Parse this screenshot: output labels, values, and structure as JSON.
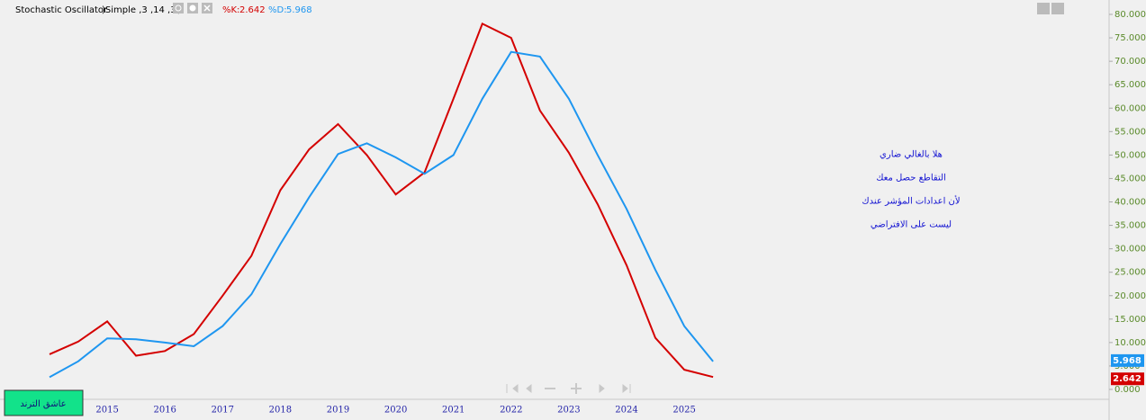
{
  "chart_data": {
    "type": "line",
    "title": "Stochastic Oscillator",
    "subtitle": ")Simple ,3 ,14 ,3(",
    "categories": [
      null,
      null,
      "2015",
      null,
      "2016",
      null,
      "2017",
      null,
      "2018",
      null,
      "2019",
      null,
      "2020",
      null,
      "2021",
      null,
      "2022",
      null,
      "2023",
      null,
      "2024",
      null,
      "2025",
      null
    ],
    "series": [
      {
        "name": "%K:",
        "color": "#d40000",
        "values": [
          7.5,
          10.2,
          14.5,
          7.2,
          8.2,
          11.8,
          20,
          28.5,
          42.5,
          51.2,
          56.6,
          50,
          41.6,
          46.3,
          62,
          78,
          75,
          59.5,
          50.5,
          39.5,
          26.5,
          11,
          4.2,
          2.642
        ]
      },
      {
        "name": "%D:",
        "color": "#1e96f0",
        "values": [
          2.6,
          6,
          10.9,
          10.7,
          10,
          9.2,
          13.5,
          20.3,
          31,
          41,
          50.2,
          52.5,
          49.5,
          46,
          50,
          62,
          72,
          71,
          62,
          50,
          38.5,
          25.5,
          13.5,
          5.968
        ]
      }
    ],
    "ylim": [
      0,
      80
    ],
    "yticks": [
      {
        "value": 0,
        "label": "0.000"
      },
      {
        "value": 5,
        "label": "5.000"
      },
      {
        "value": 10,
        "label": "10.000"
      },
      {
        "value": 15,
        "label": "15.000"
      },
      {
        "value": 20,
        "label": "20.000"
      },
      {
        "value": 25,
        "label": "25.000"
      },
      {
        "value": 30,
        "label": "30.000"
      },
      {
        "value": 35,
        "label": "35.000"
      },
      {
        "value": 40,
        "label": "40.000"
      },
      {
        "value": 45,
        "label": "45.000"
      },
      {
        "value": 50,
        "label": "50.000"
      },
      {
        "value": 55,
        "label": "55.000"
      },
      {
        "value": 60,
        "label": "60.000"
      },
      {
        "value": 65,
        "label": "65.000"
      },
      {
        "value": 70,
        "label": "70.000"
      },
      {
        "value": 75,
        "label": "75.000"
      },
      {
        "value": 80,
        "label": "80.000"
      }
    ],
    "annotations": [
      "هلا بالغالي ضاري",
      "التقاطع حصل معك",
      "لأن اعدادات المؤشر عندك",
      "ليست على الافتراضي"
    ],
    "badge": "عاشق الترند"
  }
}
